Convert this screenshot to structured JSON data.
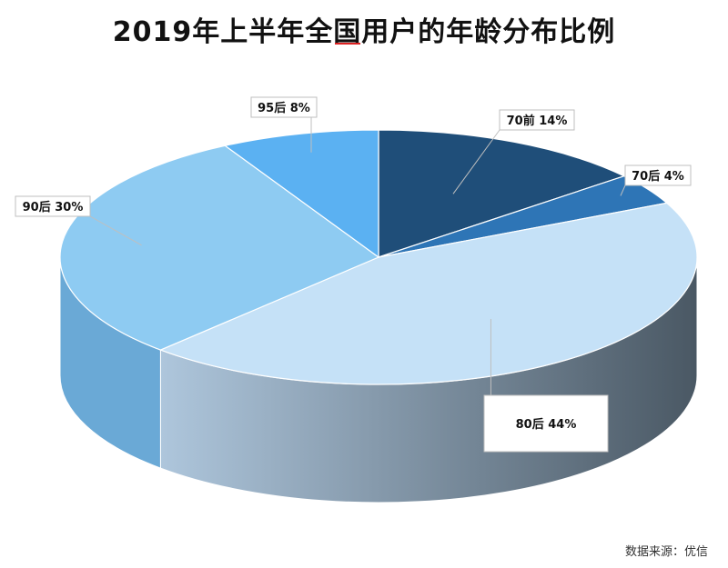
{
  "chart_data": {
    "type": "pie",
    "title": "2019年上半年全国用户的年龄分布比例",
    "slices": [
      {
        "label": "70前",
        "value": 14,
        "display": "70前 14%",
        "color": "#1f4e79",
        "side": "#173a5c"
      },
      {
        "label": "70后",
        "value": 4,
        "display": "70后 4%",
        "color": "#2e75b6",
        "side": "#1f5a8f"
      },
      {
        "label": "80后",
        "value": 44,
        "display": "80后 44%",
        "color": "#c5e1f7",
        "side": "#5a6a78"
      },
      {
        "label": "90后",
        "value": 30,
        "display": "90后 30%",
        "color": "#8ecbf2",
        "side": "#6aa9d6"
      },
      {
        "label": "95后",
        "value": 8,
        "display": "95后 8%",
        "color": "#5bb1f2",
        "side": "#4a8fc4"
      }
    ]
  },
  "source": "数据来源：优信"
}
